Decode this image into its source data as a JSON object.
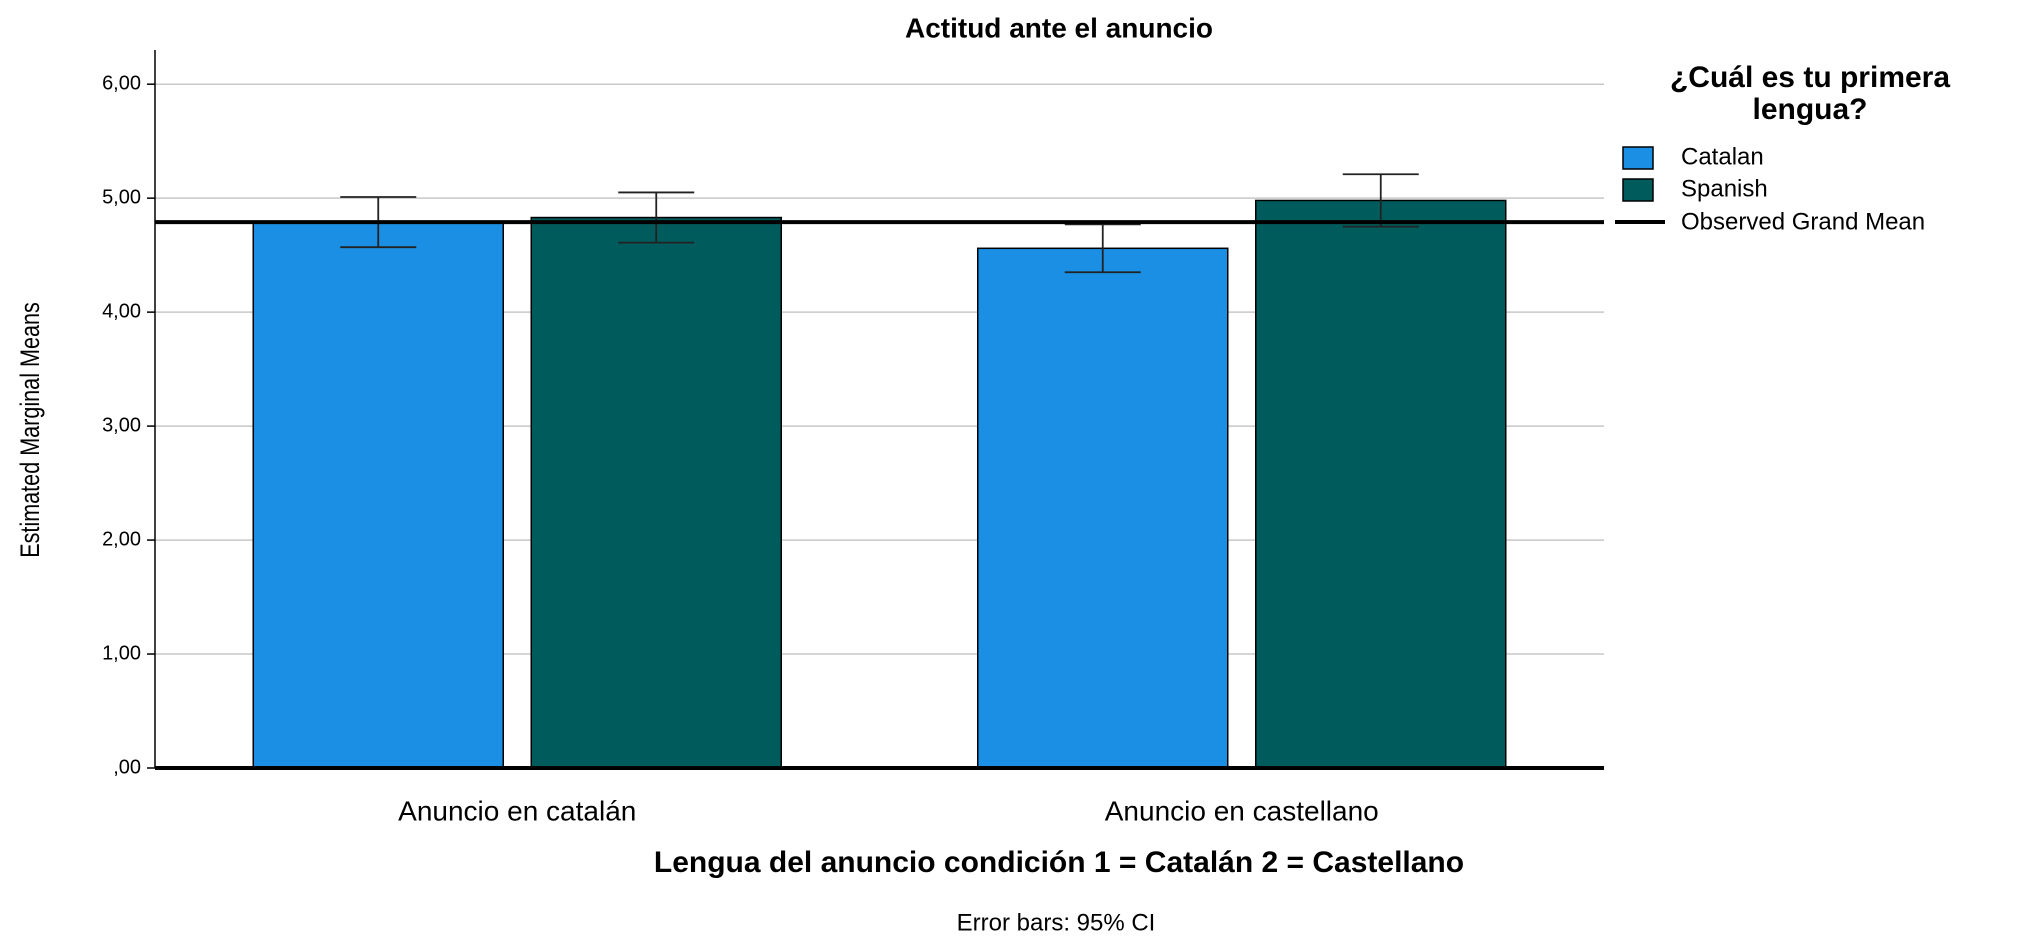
{
  "chart_data": {
    "type": "bar",
    "title": "Actitud ante el anuncio",
    "x_label": "Lengua del anuncio condición 1 = Catalán 2 = Castellano",
    "y_label": "Estimated Marginal Means",
    "footnote": "Error bars: 95% CI",
    "legend_title": "¿Cuál es tu primera lengua?",
    "categories": [
      "Anuncio en catalán",
      "Anuncio en castellano"
    ],
    "series": [
      {
        "name": "Catalan",
        "color": "#1a8fe3",
        "values": [
          4.79,
          4.56
        ],
        "errors": [
          0.22,
          0.21
        ]
      },
      {
        "name": "Spanish",
        "color": "#005c5c",
        "values": [
          4.83,
          4.98
        ],
        "errors": [
          0.22,
          0.23
        ]
      }
    ],
    "grand_mean": {
      "name": "Observed Grand Mean",
      "value": 4.79
    },
    "ylim": [
      0,
      6.3
    ],
    "yticks": [
      {
        "value": 0,
        "label": ",00"
      },
      {
        "value": 1,
        "label": "1,00"
      },
      {
        "value": 2,
        "label": "2,00"
      },
      {
        "value": 3,
        "label": "3,00"
      },
      {
        "value": 4,
        "label": "4,00"
      },
      {
        "value": 5,
        "label": "5,00"
      },
      {
        "value": 6,
        "label": "6,00"
      }
    ],
    "grid": true
  }
}
